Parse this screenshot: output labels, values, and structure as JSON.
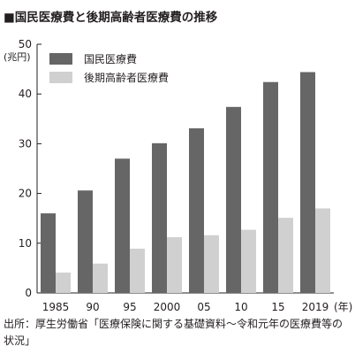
{
  "title": "■国民医療費と後期高齢者医療費の推移",
  "source": "出所：厚生労働省「医療保険に関する基礎資料～令和元年の医療費等の状況」",
  "chart_data": {
    "type": "bar",
    "categories": [
      "1985",
      "90",
      "95",
      "2000",
      "05",
      "10",
      "15",
      "2019"
    ],
    "x_unit_label": "(年)",
    "y_unit_label": "(兆円)",
    "ylim": [
      0,
      50
    ],
    "yticks": [
      0,
      10,
      20,
      30,
      40,
      50
    ],
    "grid": false,
    "legend_position": "top-left",
    "series": [
      {
        "name": "国民医療費",
        "color": "#666666",
        "values": [
          16.0,
          20.6,
          27.0,
          30.1,
          33.1,
          37.4,
          42.4,
          44.4
        ]
      },
      {
        "name": "後期高齢者医療費",
        "color": "#d0d0d0",
        "values": [
          4.1,
          5.9,
          8.9,
          11.2,
          11.6,
          12.7,
          15.1,
          17.0
        ]
      }
    ]
  }
}
